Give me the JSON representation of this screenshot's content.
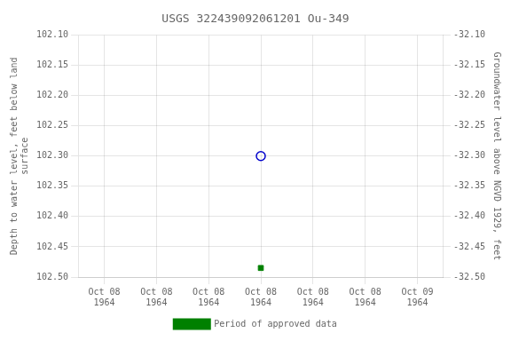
{
  "chart_data": {
    "type": "scatter",
    "title": "USGS 322439092061201 Ou-349",
    "categories": [
      "Oct 08\n1964",
      "Oct 08\n1964",
      "Oct 08\n1964",
      "Oct 08\n1964",
      "Oct 08\n1964",
      "Oct 08\n1964",
      "Oct 09\n1964"
    ],
    "series": [
      {
        "values": [
          null,
          null,
          null,
          102.3,
          null,
          null,
          null
        ],
        "color": "#0000cc",
        "marker": "open_circle"
      },
      {
        "name": "Period of approved data",
        "values": [
          null,
          null,
          null,
          102.485,
          null,
          null,
          null
        ],
        "color": "#008000",
        "marker": "square"
      }
    ],
    "y_label": "Depth to water level, feet below land\nsurface",
    "y2_label": "Groundwater level above NGVD 1929, feet",
    "ylim": [
      102.5,
      102.1
    ],
    "yticks": [
      {
        "value": 102.1,
        "label": "102.10"
      },
      102.15,
      {
        "value": 102.2,
        "label": "102.20"
      },
      102.25,
      {
        "value": 102.3,
        "label": "102.30"
      },
      102.35,
      {
        "value": 102.4,
        "label": "102.40"
      },
      102.45,
      {
        "value": 102.5,
        "label": "102.50"
      }
    ],
    "y2lim": [
      -32.5,
      -32.1
    ],
    "y2ticks": [
      {
        "value": -32.1,
        "label": "-32.10"
      },
      -32.15,
      {
        "value": -32.2,
        "label": "-32.20"
      },
      -32.25,
      {
        "value": -32.3,
        "label": "-32.30"
      },
      -32.35,
      {
        "value": -32.4,
        "label": "-32.40"
      },
      -32.45,
      {
        "value": -32.5,
        "label": "-32.50"
      }
    ],
    "grid": true,
    "legend": "bottom"
  }
}
